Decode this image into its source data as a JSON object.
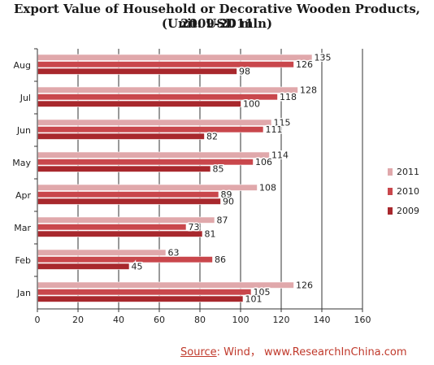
{
  "chart_data": {
    "type": "bar",
    "orientation": "horizontal",
    "title": "Export Value of Household or Decorative Wooden Products, 2009-2011",
    "subtitle": "(Unit: USD mln)",
    "categories": [
      "Aug",
      "Jul",
      "Jun",
      "May",
      "Apr",
      "Mar",
      "Feb",
      "Jan"
    ],
    "series": [
      {
        "name": "2011",
        "color": "#e0a8ab",
        "values": [
          135,
          128,
          115,
          114,
          108,
          87,
          63,
          126
        ]
      },
      {
        "name": "2010",
        "color": "#c9474c",
        "values": [
          126,
          118,
          111,
          106,
          89,
          73,
          86,
          105
        ]
      },
      {
        "name": "2009",
        "color": "#a8282d",
        "values": [
          98,
          100,
          82,
          85,
          90,
          81,
          45,
          101
        ]
      }
    ],
    "xlim": [
      0,
      160
    ],
    "xticks": [
      0,
      20,
      40,
      60,
      80,
      100,
      120,
      140,
      160
    ],
    "grid": true,
    "legend_position": "right"
  },
  "source": {
    "label": "Source",
    "text": ": Wind，  www.ResearchInChina.com"
  }
}
